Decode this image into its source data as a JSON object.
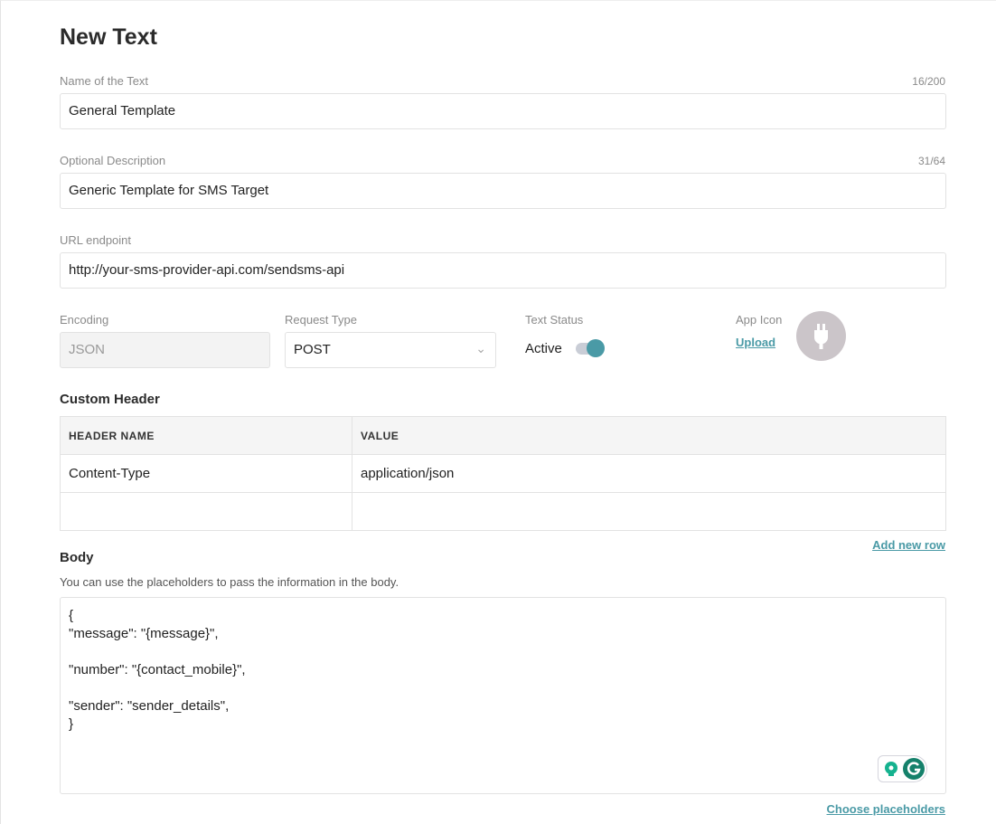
{
  "title": "New Text",
  "name": {
    "label": "Name of the Text",
    "count": "16/200",
    "value": "General Template"
  },
  "description": {
    "label": "Optional Description",
    "count": "31/64",
    "value": "Generic Template for SMS Target"
  },
  "url": {
    "label": "URL endpoint",
    "value": "http://your-sms-provider-api.com/sendsms-api"
  },
  "encoding": {
    "label": "Encoding",
    "value": "JSON"
  },
  "request_type": {
    "label": "Request Type",
    "value": "POST"
  },
  "status": {
    "label": "Text Status",
    "value": "Active",
    "on": true
  },
  "app_icon": {
    "label": "App Icon",
    "upload": "Upload",
    "icon": "plug-icon"
  },
  "custom_header": {
    "title": "Custom Header",
    "columns": [
      "HEADER NAME",
      "VALUE"
    ],
    "rows": [
      [
        "Content-Type",
        "application/json"
      ],
      [
        "",
        ""
      ]
    ],
    "add_row": "Add new row"
  },
  "body": {
    "title": "Body",
    "hint": "You can use the placeholders to pass the information in the body.",
    "value": "{\n\"message\": \"{message}\",\n\n\"number\": \"{contact_mobile}\",\n\n\"sender\": \"sender_details\",\n}",
    "choose": "Choose placeholders"
  },
  "colors": {
    "accent": "#4a9aa6",
    "grammarly": "#15816b"
  }
}
